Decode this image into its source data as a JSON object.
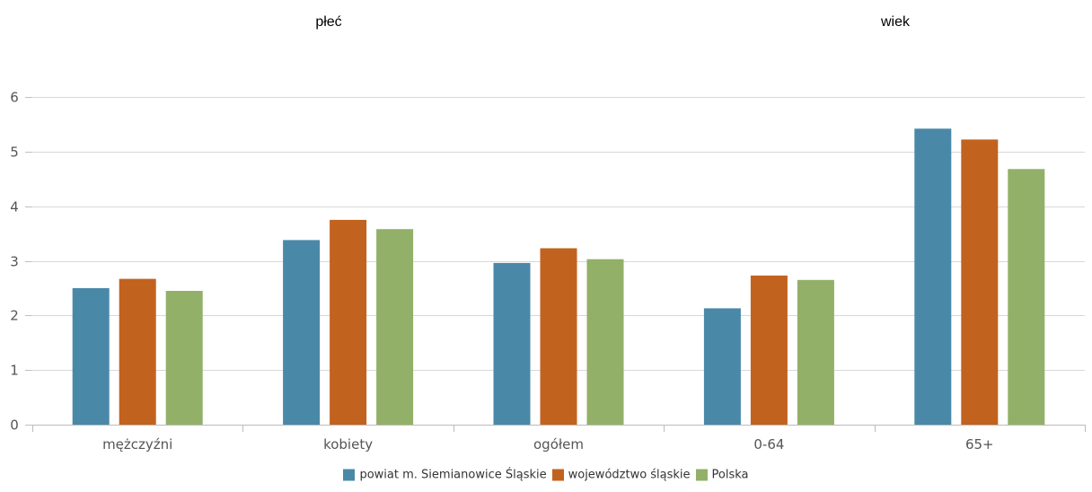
{
  "headers": {
    "left": "płeć",
    "right": "wiek"
  },
  "chart_data": {
    "type": "bar",
    "categories": [
      "mężczyźni",
      "kobiety",
      "ogółem",
      "0-64",
      "65+"
    ],
    "series": [
      {
        "name": "powiat m. Siemianowice Śląskie",
        "color": "#4a88a8",
        "values": [
          2.5,
          3.38,
          2.96,
          2.13,
          5.42
        ]
      },
      {
        "name": "województwo śląskie",
        "color": "#c2621f",
        "values": [
          2.67,
          3.75,
          3.23,
          2.73,
          5.22
        ]
      },
      {
        "name": "Polska",
        "color": "#92b068",
        "values": [
          2.45,
          3.58,
          3.03,
          2.65,
          4.68
        ]
      }
    ],
    "yticks": [
      0,
      1,
      2,
      3,
      4,
      5,
      6
    ],
    "ylim": [
      0,
      6
    ],
    "grid": true,
    "legend_position": "bottom-center"
  }
}
